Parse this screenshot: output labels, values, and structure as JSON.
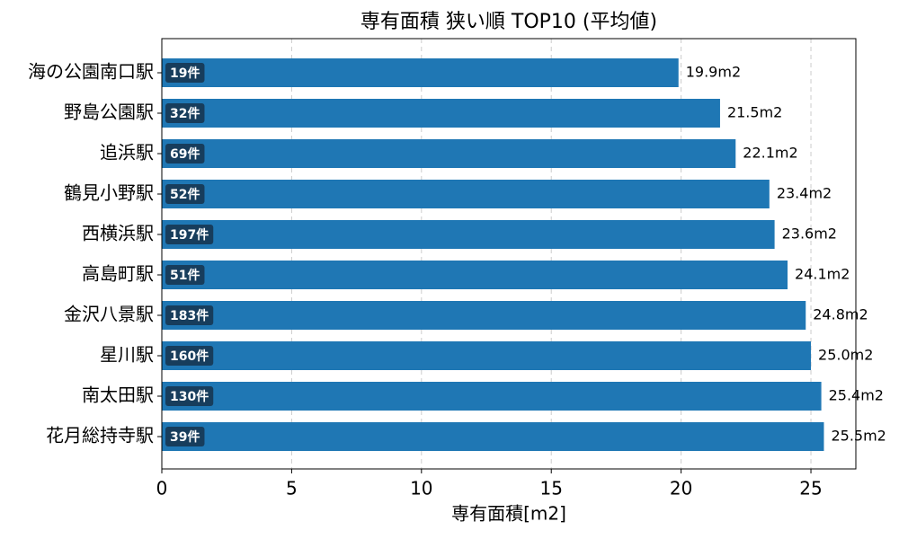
{
  "chart_data": {
    "type": "barh",
    "title": "専有面積 狭い順 TOP10 (平均値)",
    "x_label": "専有面積[m2]",
    "categories": [
      "海の公園南口駅",
      "野島公園駅",
      "追浜駅",
      "鶴見小野駅",
      "西横浜駅",
      "高島町駅",
      "金沢八景駅",
      "星川駅",
      "南太田駅",
      "花月総持寺駅"
    ],
    "values": [
      19.9,
      21.5,
      22.1,
      23.4,
      23.6,
      24.1,
      24.8,
      25.0,
      25.4,
      25.5
    ],
    "value_labels": [
      "19.9m2",
      "21.5m2",
      "22.1m2",
      "23.4m2",
      "23.6m2",
      "24.1m2",
      "24.8m2",
      "25.0m2",
      "25.4m2",
      "25.5m2"
    ],
    "bar_annotations": [
      "19件",
      "32件",
      "69件",
      "52件",
      "197件",
      "51件",
      "183件",
      "160件",
      "130件",
      "39件"
    ],
    "color": "#1f77b4",
    "xlim": [
      0,
      26.73
    ],
    "xticks": [
      0,
      5,
      10,
      15,
      20,
      25
    ],
    "grid": true
  }
}
